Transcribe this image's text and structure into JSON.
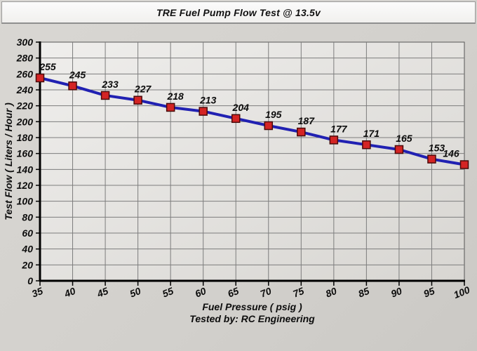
{
  "window": {
    "title": "TRE Fuel Pump Flow Test @ 13.5v"
  },
  "chart_data": {
    "type": "line",
    "title": "TRE Fuel Pump Flow Test @ 13.5v",
    "x": [
      35,
      40,
      45,
      50,
      55,
      60,
      65,
      70,
      75,
      80,
      85,
      90,
      95,
      100
    ],
    "series": [
      {
        "name": "Test Flow",
        "values": [
          255,
          245,
          233,
          227,
          218,
          213,
          204,
          195,
          187,
          177,
          171,
          165,
          153,
          146
        ]
      }
    ],
    "data_labels_shown": true,
    "xlabel": "Fuel Pressure ( psig )",
    "footer": "Tested by: RC Engineering",
    "ylabel": "Test Flow ( Liters / Hour )",
    "xlim": [
      35,
      100
    ],
    "xtick_step": 5,
    "ylim": [
      0,
      300
    ],
    "ytick_step": 20,
    "grid": true,
    "legend_position": "none",
    "colors": {
      "line": "#2121b2",
      "marker_fill": "#d42424",
      "marker_border": "#4a0a0a",
      "grid": "#7d7d7d",
      "axis": "#000000",
      "plot_bg_light": "#efeeec",
      "plot_bg_dark": "#d8d6d2",
      "page_bg": "#d2d0cc",
      "text": "#0d0d0d"
    }
  }
}
